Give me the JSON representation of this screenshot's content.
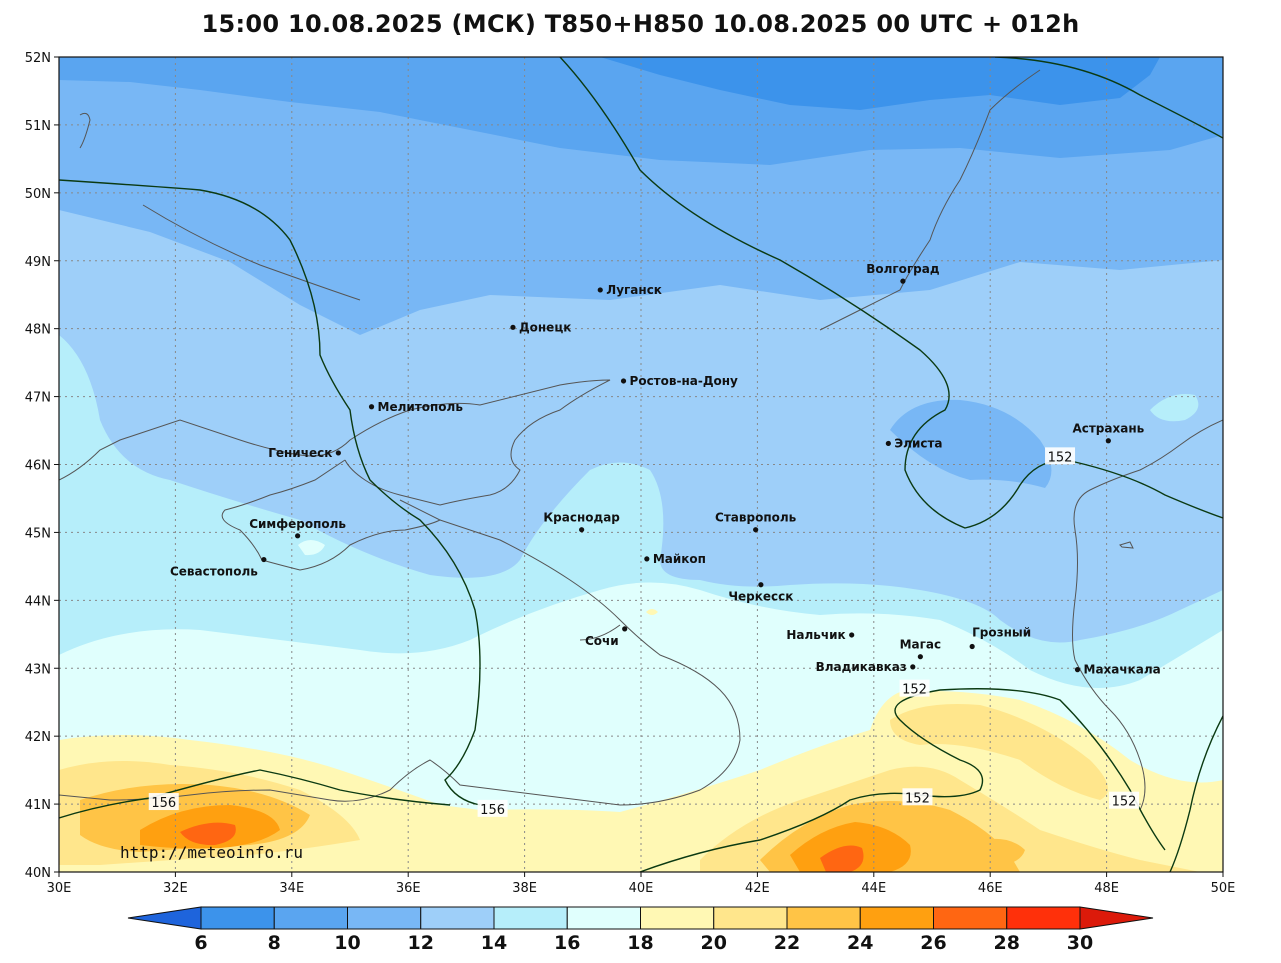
{
  "title": "15:00 10.08.2025 (МСК) T850+H850 10.08.2025 00 UTC + 012h",
  "credit": "http://meteoinfo.ru",
  "map": {
    "lon_range": [
      30,
      50
    ],
    "lat_range": [
      40,
      52
    ],
    "lon_ticks": [
      {
        "value": 30,
        "label": "30E"
      },
      {
        "value": 32,
        "label": "32E"
      },
      {
        "value": 34,
        "label": "34E"
      },
      {
        "value": 36,
        "label": "36E"
      },
      {
        "value": 38,
        "label": "38E"
      },
      {
        "value": 40,
        "label": "40E"
      },
      {
        "value": 42,
        "label": "42E"
      },
      {
        "value": 44,
        "label": "44E"
      },
      {
        "value": 46,
        "label": "46E"
      },
      {
        "value": 48,
        "label": "48E"
      },
      {
        "value": 50,
        "label": "50E"
      }
    ],
    "lat_ticks": [
      {
        "value": 40,
        "label": "40N"
      },
      {
        "value": 41,
        "label": "41N"
      },
      {
        "value": 42,
        "label": "42N"
      },
      {
        "value": 43,
        "label": "43N"
      },
      {
        "value": 44,
        "label": "44N"
      },
      {
        "value": 45,
        "label": "45N"
      },
      {
        "value": 46,
        "label": "46N"
      },
      {
        "value": 47,
        "label": "47N"
      },
      {
        "value": 48,
        "label": "48N"
      },
      {
        "value": 49,
        "label": "49N"
      },
      {
        "value": 50,
        "label": "50N"
      },
      {
        "value": 51,
        "label": "51N"
      },
      {
        "value": 52,
        "label": "52N"
      }
    ],
    "grid": true,
    "cities": [
      {
        "name": "Луганск",
        "lon": 39.3,
        "lat": 48.57,
        "anchor": "right"
      },
      {
        "name": "Донецк",
        "lon": 37.8,
        "lat": 48.02,
        "anchor": "right"
      },
      {
        "name": "Волгоград",
        "lon": 44.5,
        "lat": 48.7,
        "anchor": "above"
      },
      {
        "name": "Ростов-на-Дону",
        "lon": 39.7,
        "lat": 47.23,
        "anchor": "right"
      },
      {
        "name": "Мелитополь",
        "lon": 35.37,
        "lat": 46.85,
        "anchor": "right"
      },
      {
        "name": "Геническ",
        "lon": 34.8,
        "lat": 46.17,
        "anchor": "left"
      },
      {
        "name": "Элиста",
        "lon": 44.25,
        "lat": 46.31,
        "anchor": "right"
      },
      {
        "name": "Астрахань",
        "lon": 48.03,
        "lat": 46.35,
        "anchor": "above"
      },
      {
        "name": "Симферополь",
        "lon": 34.1,
        "lat": 44.95,
        "anchor": "above"
      },
      {
        "name": "Севастополь",
        "lon": 33.52,
        "lat": 44.6,
        "anchor": "below-left"
      },
      {
        "name": "Краснодар",
        "lon": 38.98,
        "lat": 45.04,
        "anchor": "above"
      },
      {
        "name": "Ставрополь",
        "lon": 41.97,
        "lat": 45.04,
        "anchor": "above"
      },
      {
        "name": "Майкоп",
        "lon": 40.1,
        "lat": 44.61,
        "anchor": "right"
      },
      {
        "name": "Черкесск",
        "lon": 42.06,
        "lat": 44.23,
        "anchor": "below"
      },
      {
        "name": "Сочи",
        "lon": 39.72,
        "lat": 43.58,
        "anchor": "below-left"
      },
      {
        "name": "Нальчик",
        "lon": 43.62,
        "lat": 43.49,
        "anchor": "left"
      },
      {
        "name": "Магас",
        "lon": 44.8,
        "lat": 43.17,
        "anchor": "above"
      },
      {
        "name": "Грозный",
        "lon": 45.69,
        "lat": 43.32,
        "anchor": "above-right"
      },
      {
        "name": "Владикавказ",
        "lon": 44.67,
        "lat": 43.02,
        "anchor": "left"
      },
      {
        "name": "Махачкала",
        "lon": 47.5,
        "lat": 42.98,
        "anchor": "right"
      }
    ],
    "contour_labels": [
      {
        "text": "152",
        "lon": 47.2,
        "lat": 46.12
      },
      {
        "text": "152",
        "lon": 44.7,
        "lat": 42.7
      },
      {
        "text": "152",
        "lon": 44.75,
        "lat": 41.1
      },
      {
        "text": "152",
        "lon": 48.3,
        "lat": 41.05
      },
      {
        "text": "156",
        "lon": 31.8,
        "lat": 41.03
      },
      {
        "text": "156",
        "lon": 37.45,
        "lat": 40.93
      }
    ]
  },
  "colorbar": {
    "unit_note": "",
    "bins": [
      {
        "color": "#1e64dc"
      },
      {
        "color": "#3c93eb"
      },
      {
        "color": "#5aa5f0"
      },
      {
        "color": "#78b7f5"
      },
      {
        "color": "#9ecff9"
      },
      {
        "color": "#b6eefa"
      },
      {
        "color": "#e0fffd"
      },
      {
        "color": "#fff8b4"
      },
      {
        "color": "#ffe68c"
      },
      {
        "color": "#ffc446"
      },
      {
        "color": "#ffa010"
      },
      {
        "color": "#ff6612"
      },
      {
        "color": "#ff300a"
      },
      {
        "color": "#dc1a0a"
      }
    ],
    "labels": [
      "6",
      "8",
      "10",
      "12",
      "14",
      "16",
      "18",
      "20",
      "22",
      "24",
      "26",
      "28",
      "30"
    ]
  }
}
